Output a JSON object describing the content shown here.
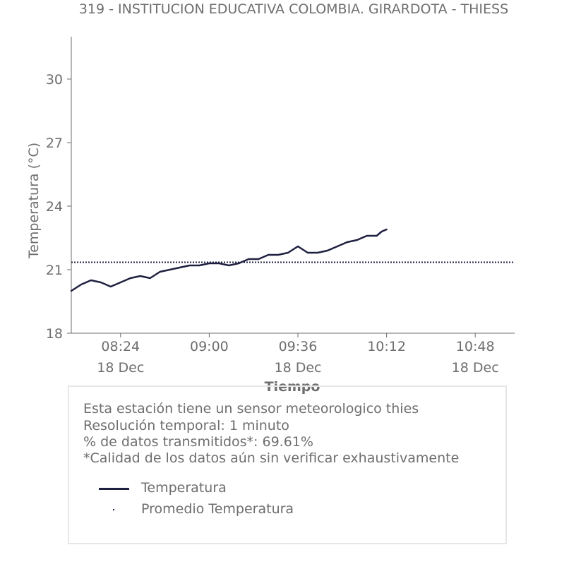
{
  "chart_data": {
    "type": "line",
    "title": "319 - INSTITUCION EDUCATIVA COLOMBIA. GIRARDOTA - THIESS",
    "xlabel": "Tiempo",
    "ylabel": "Temperatura (°C)",
    "xlim": [
      "2023-12-18 08:04",
      "2023-12-18 11:04"
    ],
    "ylim": [
      18,
      32
    ],
    "y_ticks": [
      18,
      21,
      24,
      27,
      30
    ],
    "x_ticks": [
      {
        "time": "08:24",
        "time_label": "08:24",
        "date_label": "18 Dec"
      },
      {
        "time": "09:00",
        "time_label": "09:00",
        "date_label": ""
      },
      {
        "time": "09:36",
        "time_label": "09:36",
        "date_label": "18 Dec"
      },
      {
        "time": "10:12",
        "time_label": "10:12",
        "date_label": ""
      },
      {
        "time": "10:48",
        "time_label": "10:48",
        "date_label": "18 Dec"
      }
    ],
    "series": [
      {
        "name": "Temperatura",
        "style": "solid",
        "color": "#1f2041",
        "x": [
          "08:04",
          "08:08",
          "08:12",
          "08:16",
          "08:20",
          "08:24",
          "08:28",
          "08:32",
          "08:36",
          "08:40",
          "08:44",
          "08:48",
          "08:52",
          "08:56",
          "09:00",
          "09:04",
          "09:08",
          "09:12",
          "09:16",
          "09:20",
          "09:24",
          "09:28",
          "09:32",
          "09:36",
          "09:40",
          "09:44",
          "09:48",
          "09:52",
          "09:56",
          "10:00",
          "10:04",
          "10:08",
          "10:10",
          "10:12"
        ],
        "y": [
          20.0,
          20.3,
          20.5,
          20.4,
          20.2,
          20.4,
          20.6,
          20.7,
          20.6,
          20.9,
          21.0,
          21.1,
          21.2,
          21.2,
          21.3,
          21.3,
          21.2,
          21.3,
          21.5,
          21.5,
          21.7,
          21.7,
          21.8,
          22.1,
          21.8,
          21.8,
          21.9,
          22.1,
          22.3,
          22.4,
          22.6,
          22.6,
          22.8,
          22.9
        ]
      },
      {
        "name": "Promedio Temperatura",
        "style": "dotted",
        "color": "#1f2041",
        "constant": 21.35
      }
    ],
    "grid": false,
    "legend_position": "bottom"
  },
  "info": {
    "line1": "Esta estación tiene un sensor meteorologico thies",
    "line2": "Resolución temporal: 1 minuto",
    "line3": "% de datos transmitidos*: 69.61%",
    "line4": "*Calidad de los datos aún sin verificar exhaustivamente"
  },
  "legend": {
    "item1": "Temperatura",
    "item2": "Promedio Temperatura"
  },
  "colors": {
    "series": "#1f2041",
    "text": "#6e6e6e",
    "axis": "#6e6e6e",
    "box_border": "#e6e6e6"
  }
}
